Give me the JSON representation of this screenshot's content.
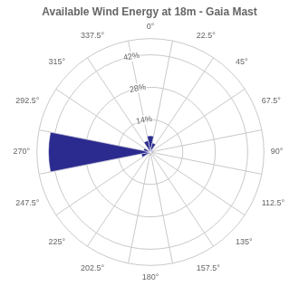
{
  "chart_data": {
    "type": "polar",
    "title": "Available Wind Energy at 18m - Gaia Mast",
    "categories": [
      "0°",
      "22.5°",
      "45°",
      "67.5°",
      "90°",
      "112.5°",
      "135°",
      "157.5°",
      "180°",
      "202.5°",
      "225°",
      "247.5°",
      "270°",
      "292.5°",
      "315°",
      "337.5°"
    ],
    "values": [
      7,
      4,
      1,
      1,
      1,
      0.5,
      0.5,
      0.5,
      0.5,
      0.5,
      1,
      4,
      44,
      3,
      1,
      5
    ],
    "color": "#2B2B8F",
    "ylim": [
      0,
      49
    ],
    "yticks": [
      {
        "value": 14,
        "label": "14%"
      },
      {
        "value": 28,
        "label": "28%"
      },
      {
        "value": 42,
        "label": "42%"
      }
    ],
    "grid": true
  }
}
